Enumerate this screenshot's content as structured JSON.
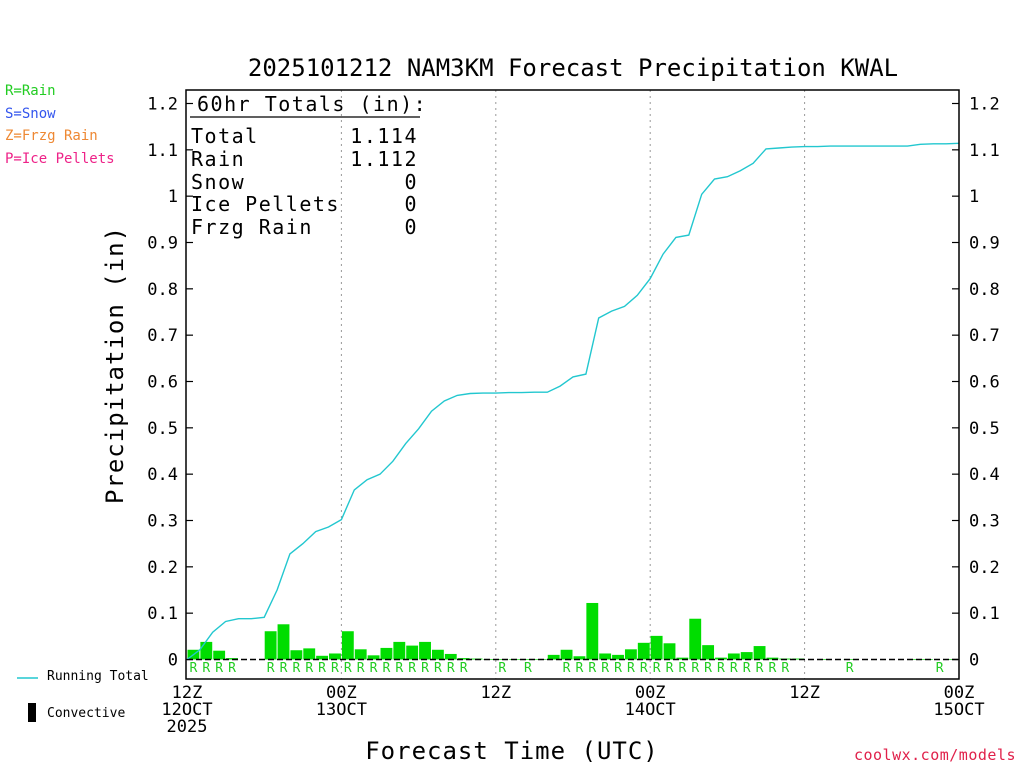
{
  "title": "2025101212 NAM3KM Forecast Precipitation KWAL",
  "ylabel": "Precipitation (in)",
  "xlabel": "Forecast Time (UTC)",
  "credit": "coolwx.com/models",
  "ptype_legend": [
    {
      "text": "R=Rain",
      "color": "#22cc22"
    },
    {
      "text": "S=Snow",
      "color": "#3355ee"
    },
    {
      "text": "Z=Frzg Rain",
      "color": "#ee8833"
    },
    {
      "text": "P=Ice Pellets",
      "color": "#ee2288"
    }
  ],
  "bottom_legend": {
    "running_total": "Running Total",
    "convective": "Convective"
  },
  "totals": {
    "header": "60hr Totals (in):",
    "rows": [
      {
        "label": "Total",
        "value": "1.114"
      },
      {
        "label": "Rain",
        "value": "1.112"
      },
      {
        "label": "Snow",
        "value": "0"
      },
      {
        "label": "Ice Pellets",
        "value": "0"
      },
      {
        "label": "Frzg Rain",
        "value": "0"
      }
    ]
  },
  "colors": {
    "bars": "#00dd00",
    "line": "#22c7cf",
    "rain_label": "#22cc22",
    "grid": "#999999"
  },
  "chart_data": {
    "type": "bar",
    "x_unit": "forecast hour",
    "ylim": [
      0,
      1.22
    ],
    "xlim": [
      0,
      60
    ],
    "y_ticks": [
      "0",
      "0.1",
      "0.2",
      "0.3",
      "0.4",
      "0.5",
      "0.6",
      "0.7",
      "0.8",
      "0.9",
      "1",
      "1.1",
      "1.2"
    ],
    "x_ticks": [
      {
        "hour": 0,
        "lines": [
          "12Z",
          "12OCT",
          "2025"
        ]
      },
      {
        "hour": 12,
        "lines": [
          "00Z",
          "13OCT"
        ]
      },
      {
        "hour": 24,
        "lines": [
          "12Z"
        ]
      },
      {
        "hour": 36,
        "lines": [
          "00Z",
          "14OCT"
        ]
      },
      {
        "hour": 48,
        "lines": [
          "12Z"
        ]
      },
      {
        "hour": 60,
        "lines": [
          "00Z",
          "15OCT"
        ]
      }
    ],
    "series": [
      {
        "name": "Precipitation",
        "type": "bar",
        "values": [
          0.021,
          0.038,
          0.019,
          0.003,
          0,
          0,
          0.061,
          0.076,
          0.02,
          0.024,
          0.008,
          0.013,
          0.061,
          0.022,
          0.009,
          0.025,
          0.038,
          0.03,
          0.038,
          0.021,
          0.012,
          0.003,
          0.002,
          0.001,
          0.001,
          0.001,
          0.001,
          0.001,
          0.01,
          0.021,
          0.007,
          0.122,
          0.013,
          0.01,
          0.022,
          0.036,
          0.051,
          0.035,
          0.004,
          0.088,
          0.031,
          0.004,
          0.013,
          0.016,
          0.029,
          0.004,
          0.002,
          0.002,
          0,
          0.001,
          0,
          0.001,
          0,
          0,
          0,
          0,
          0.001,
          0.001,
          0,
          0.001
        ]
      },
      {
        "name": "Running Total",
        "type": "line",
        "values": [
          0,
          0.021,
          0.059,
          0.082,
          0.088,
          0.088,
          0.091,
          0.15,
          0.228,
          0.25,
          0.276,
          0.286,
          0.302,
          0.366,
          0.388,
          0.4,
          0.428,
          0.466,
          0.498,
          0.536,
          0.558,
          0.57,
          0.574,
          0.575,
          0.575,
          0.576,
          0.576,
          0.577,
          0.577,
          0.59,
          0.61,
          0.616,
          0.737,
          0.752,
          0.762,
          0.786,
          0.822,
          0.875,
          0.911,
          0.916,
          1.004,
          1.037,
          1.042,
          1.055,
          1.071,
          1.102,
          1.104,
          1.106,
          1.107,
          1.107,
          1.108,
          1.108,
          1.108,
          1.108,
          1.108,
          1.108,
          1.108,
          1.112,
          1.113,
          1.113,
          1.114
        ]
      }
    ],
    "ptype_labels": [
      "R",
      "R",
      "R",
      "R",
      "",
      "",
      "R",
      "R",
      "R",
      "R",
      "R",
      "R",
      "R",
      "R",
      "R",
      "R",
      "R",
      "R",
      "R",
      "R",
      "R",
      "R",
      "",
      "",
      "R",
      "",
      "R",
      "",
      "",
      "R",
      "R",
      "R",
      "R",
      "R",
      "R",
      "R",
      "R",
      "R",
      "R",
      "R",
      "R",
      "R",
      "R",
      "R",
      "R",
      "R",
      "R",
      "",
      "",
      "",
      "",
      "R",
      "",
      "",
      "",
      "",
      "",
      "",
      "R",
      ""
    ]
  }
}
